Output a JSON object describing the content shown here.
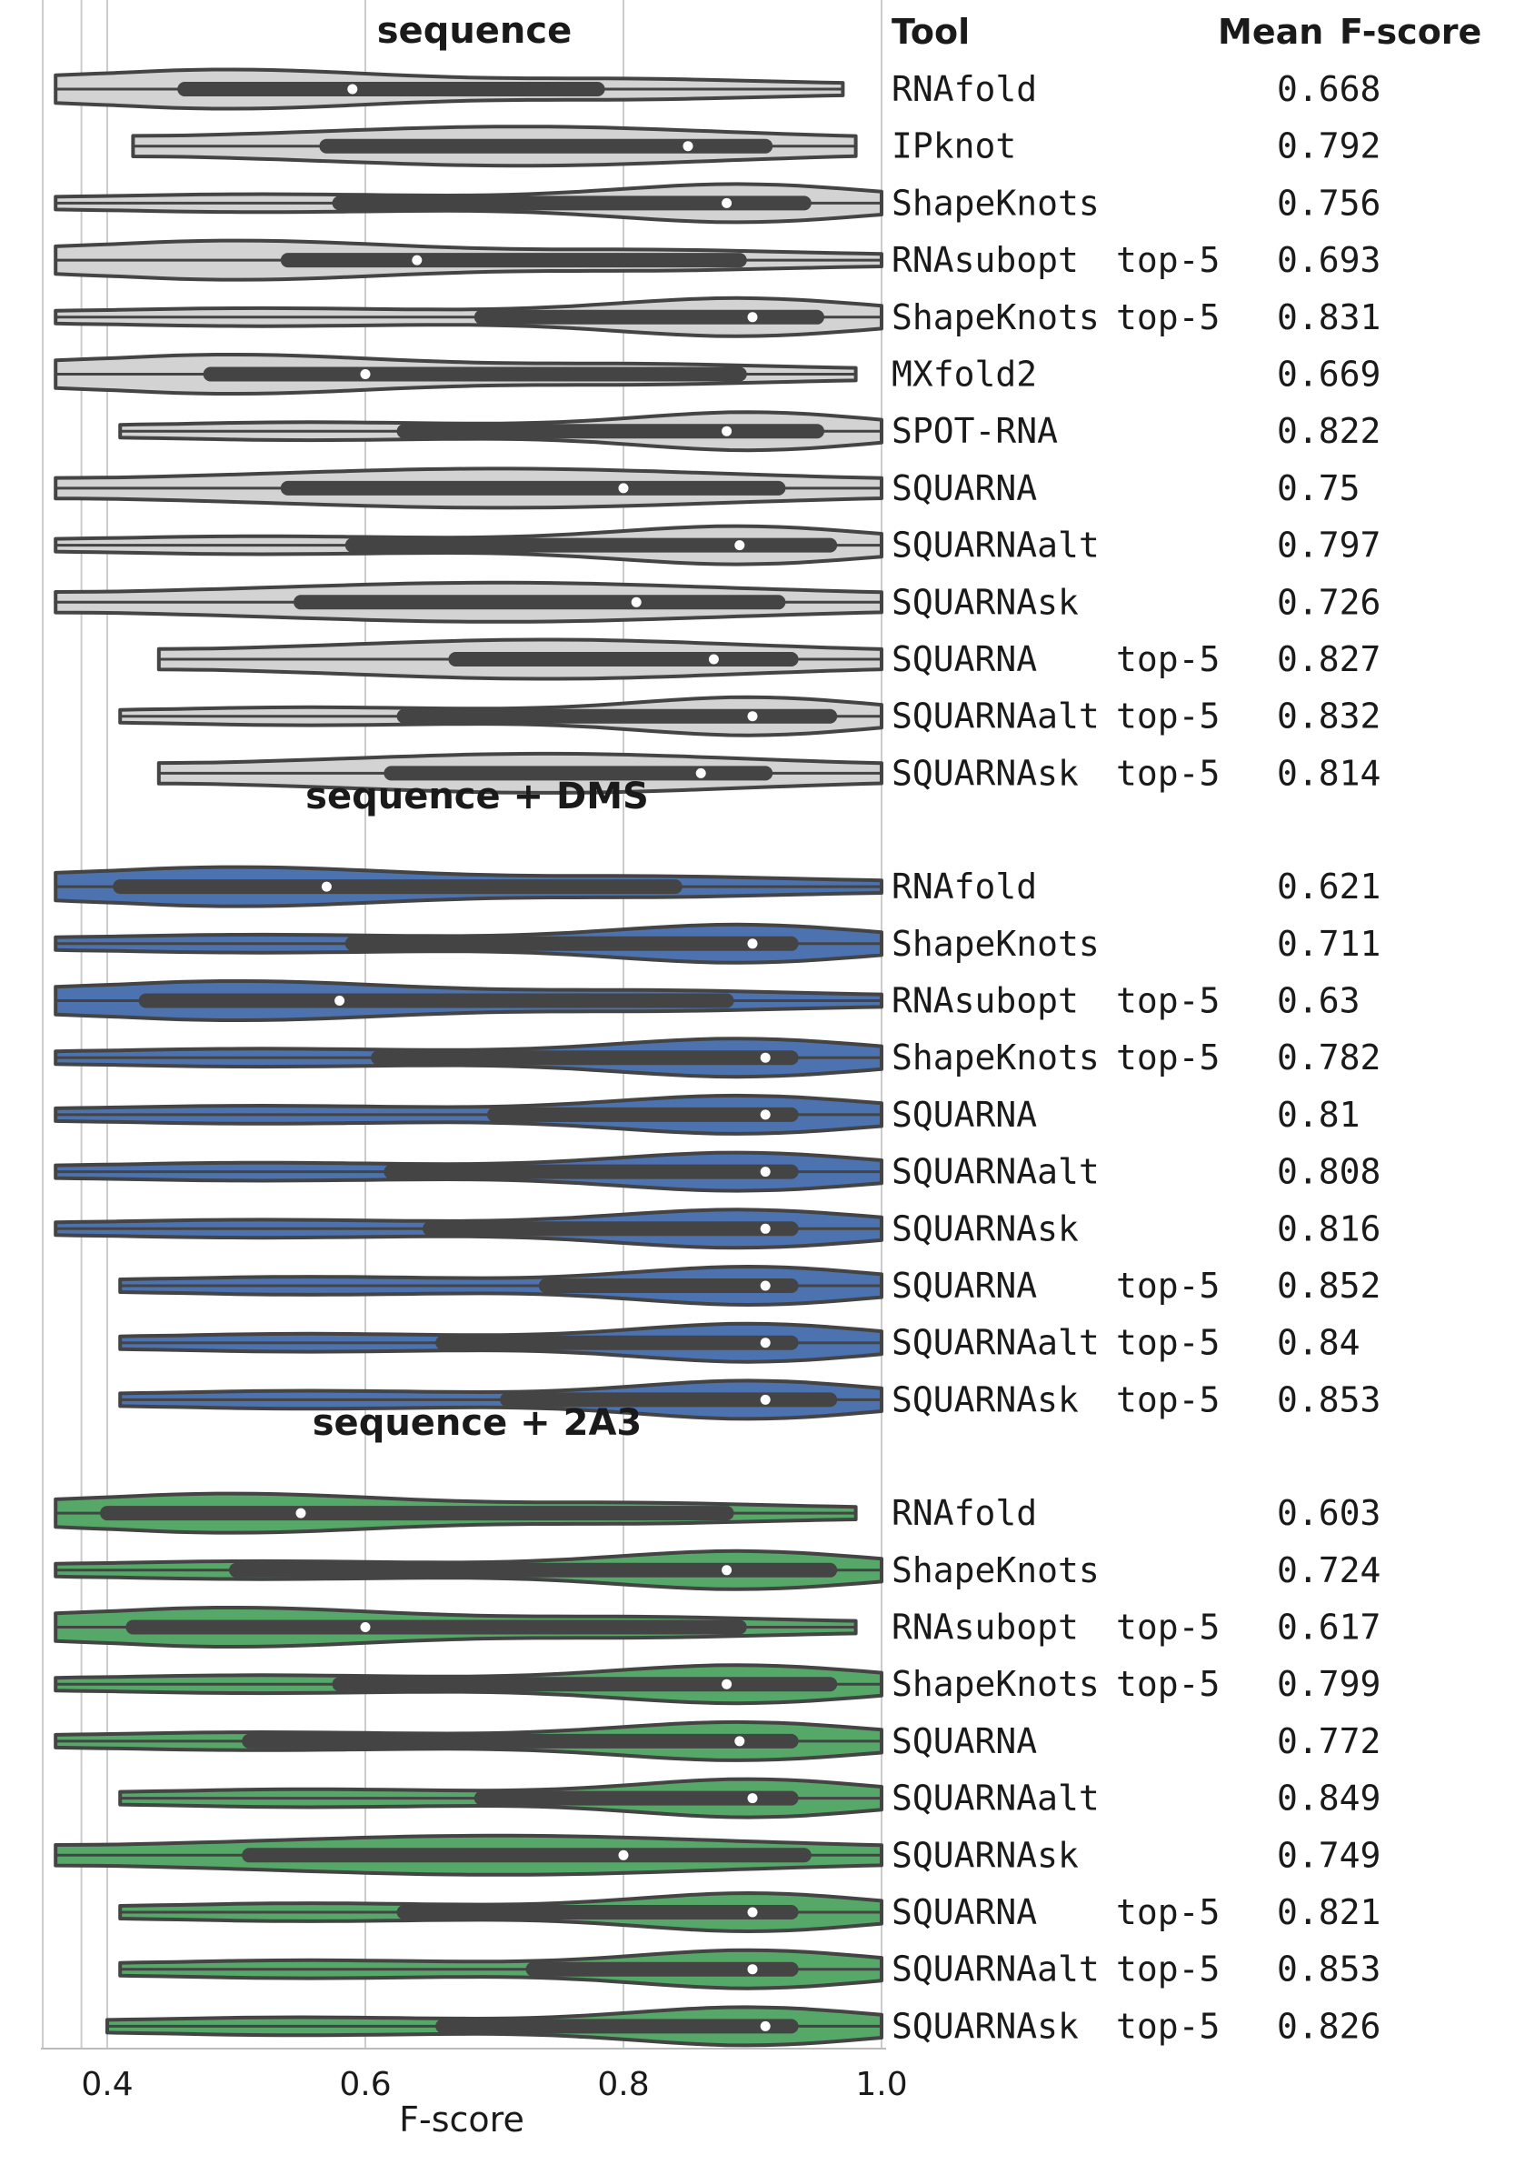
{
  "header": {
    "tool": "Tool",
    "mean": "Mean",
    "fscore": "F-score"
  },
  "colors": {
    "sequence": "#d3d3d3",
    "dms": "#4c72b0",
    "a3": "#55a868",
    "outline": "#444444"
  },
  "chart_data": {
    "type": "violin",
    "xlabel": "F-score",
    "xlim": [
      0.35,
      1.0
    ],
    "xticks": [
      {
        "value": 0.4,
        "label": "0.4"
      },
      {
        "value": 0.6,
        "label": "0.6"
      },
      {
        "value": 0.8,
        "label": "0.8"
      },
      {
        "value": 1.0,
        "label": "1.0"
      }
    ],
    "groups": [
      {
        "title": "sequence",
        "color": "#d3d3d3",
        "tools": [
          {
            "tool": "RNAfold",
            "variant": "",
            "mean": "0.668",
            "min": 0.36,
            "max": 0.97,
            "q1": 0.46,
            "q3": 0.78,
            "median": 0.59,
            "shape": "left"
          },
          {
            "tool": "IPknot",
            "variant": "",
            "mean": "0.792",
            "min": 0.42,
            "max": 0.98,
            "q1": 0.57,
            "q3": 0.91,
            "median": 0.85,
            "shape": "even"
          },
          {
            "tool": "ShapeKnots",
            "variant": "",
            "mean": "0.756",
            "min": 0.36,
            "max": 1.0,
            "q1": 0.58,
            "q3": 0.94,
            "median": 0.88,
            "shape": "right"
          },
          {
            "tool": "RNAsubopt",
            "variant": "top-5",
            "mean": "0.693",
            "min": 0.36,
            "max": 1.0,
            "q1": 0.54,
            "q3": 0.89,
            "median": 0.64,
            "shape": "left"
          },
          {
            "tool": "ShapeKnots",
            "variant": "top-5",
            "mean": "0.831",
            "min": 0.36,
            "max": 1.0,
            "q1": 0.69,
            "q3": 0.95,
            "median": 0.9,
            "shape": "right"
          },
          {
            "tool": "MXfold2",
            "variant": "",
            "mean": "0.669",
            "min": 0.36,
            "max": 0.98,
            "q1": 0.48,
            "q3": 0.89,
            "median": 0.6,
            "shape": "left"
          },
          {
            "tool": "SPOT-RNA",
            "variant": "",
            "mean": "0.822",
            "min": 0.41,
            "max": 1.0,
            "q1": 0.63,
            "q3": 0.95,
            "median": 0.88,
            "shape": "right"
          },
          {
            "tool": "SQUARNA",
            "variant": "",
            "mean": "0.75",
            "min": 0.36,
            "max": 1.0,
            "q1": 0.54,
            "q3": 0.92,
            "median": 0.8,
            "shape": "even"
          },
          {
            "tool": "SQUARNAalt",
            "variant": "",
            "mean": "0.797",
            "min": 0.36,
            "max": 1.0,
            "q1": 0.59,
            "q3": 0.96,
            "median": 0.89,
            "shape": "right"
          },
          {
            "tool": "SQUARNAsk",
            "variant": "",
            "mean": "0.726",
            "min": 0.36,
            "max": 1.0,
            "q1": 0.55,
            "q3": 0.92,
            "median": 0.81,
            "shape": "even"
          },
          {
            "tool": "SQUARNA",
            "variant": "top-5",
            "mean": "0.827",
            "min": 0.44,
            "max": 1.0,
            "q1": 0.67,
            "q3": 0.93,
            "median": 0.87,
            "shape": "even"
          },
          {
            "tool": "SQUARNAalt",
            "variant": "top-5",
            "mean": "0.832",
            "min": 0.41,
            "max": 1.0,
            "q1": 0.63,
            "q3": 0.96,
            "median": 0.9,
            "shape": "right"
          },
          {
            "tool": "SQUARNAsk",
            "variant": "top-5",
            "mean": "0.814",
            "min": 0.44,
            "max": 1.0,
            "q1": 0.62,
            "q3": 0.91,
            "median": 0.86,
            "shape": "even"
          }
        ]
      },
      {
        "title": "sequence + DMS",
        "color": "#4c72b0",
        "tools": [
          {
            "tool": "RNAfold",
            "variant": "",
            "mean": "0.621",
            "min": 0.36,
            "max": 1.0,
            "q1": 0.41,
            "q3": 0.84,
            "median": 0.57,
            "shape": "left"
          },
          {
            "tool": "ShapeKnots",
            "variant": "",
            "mean": "0.711",
            "min": 0.36,
            "max": 1.0,
            "q1": 0.59,
            "q3": 0.93,
            "median": 0.9,
            "shape": "right"
          },
          {
            "tool": "RNAsubopt",
            "variant": "top-5",
            "mean": "0.63",
            "min": 0.36,
            "max": 1.0,
            "q1": 0.43,
            "q3": 0.88,
            "median": 0.58,
            "shape": "left"
          },
          {
            "tool": "ShapeKnots",
            "variant": "top-5",
            "mean": "0.782",
            "min": 0.36,
            "max": 1.0,
            "q1": 0.61,
            "q3": 0.93,
            "median": 0.91,
            "shape": "right"
          },
          {
            "tool": "SQUARNA",
            "variant": "",
            "mean": "0.81",
            "min": 0.36,
            "max": 1.0,
            "q1": 0.7,
            "q3": 0.93,
            "median": 0.91,
            "shape": "right"
          },
          {
            "tool": "SQUARNAalt",
            "variant": "",
            "mean": "0.808",
            "min": 0.36,
            "max": 1.0,
            "q1": 0.62,
            "q3": 0.93,
            "median": 0.91,
            "shape": "right"
          },
          {
            "tool": "SQUARNAsk",
            "variant": "",
            "mean": "0.816",
            "min": 0.36,
            "max": 1.0,
            "q1": 0.65,
            "q3": 0.93,
            "median": 0.91,
            "shape": "right"
          },
          {
            "tool": "SQUARNA",
            "variant": "top-5",
            "mean": "0.852",
            "min": 0.41,
            "max": 1.0,
            "q1": 0.74,
            "q3": 0.93,
            "median": 0.91,
            "shape": "right"
          },
          {
            "tool": "SQUARNAalt",
            "variant": "top-5",
            "mean": "0.84",
            "min": 0.41,
            "max": 1.0,
            "q1": 0.66,
            "q3": 0.93,
            "median": 0.91,
            "shape": "right"
          },
          {
            "tool": "SQUARNAsk",
            "variant": "top-5",
            "mean": "0.853",
            "min": 0.41,
            "max": 1.0,
            "q1": 0.71,
            "q3": 0.96,
            "median": 0.91,
            "shape": "right"
          }
        ]
      },
      {
        "title": "sequence + 2A3",
        "color": "#55a868",
        "tools": [
          {
            "tool": "RNAfold",
            "variant": "",
            "mean": "0.603",
            "min": 0.36,
            "max": 0.98,
            "q1": 0.4,
            "q3": 0.88,
            "median": 0.55,
            "shape": "left"
          },
          {
            "tool": "ShapeKnots",
            "variant": "",
            "mean": "0.724",
            "min": 0.36,
            "max": 1.0,
            "q1": 0.5,
            "q3": 0.96,
            "median": 0.88,
            "shape": "right"
          },
          {
            "tool": "RNAsubopt",
            "variant": "top-5",
            "mean": "0.617",
            "min": 0.36,
            "max": 0.98,
            "q1": 0.42,
            "q3": 0.89,
            "median": 0.6,
            "shape": "left"
          },
          {
            "tool": "ShapeKnots",
            "variant": "top-5",
            "mean": "0.799",
            "min": 0.36,
            "max": 1.0,
            "q1": 0.58,
            "q3": 0.96,
            "median": 0.88,
            "shape": "right"
          },
          {
            "tool": "SQUARNA",
            "variant": "",
            "mean": "0.772",
            "min": 0.36,
            "max": 1.0,
            "q1": 0.51,
            "q3": 0.93,
            "median": 0.89,
            "shape": "right"
          },
          {
            "tool": "SQUARNAalt",
            "variant": "",
            "mean": "0.849",
            "min": 0.41,
            "max": 1.0,
            "q1": 0.69,
            "q3": 0.93,
            "median": 0.9,
            "shape": "right"
          },
          {
            "tool": "SQUARNAsk",
            "variant": "",
            "mean": "0.749",
            "min": 0.36,
            "max": 1.0,
            "q1": 0.51,
            "q3": 0.94,
            "median": 0.8,
            "shape": "even"
          },
          {
            "tool": "SQUARNA",
            "variant": "top-5",
            "mean": "0.821",
            "min": 0.41,
            "max": 1.0,
            "q1": 0.63,
            "q3": 0.93,
            "median": 0.9,
            "shape": "right"
          },
          {
            "tool": "SQUARNAalt",
            "variant": "top-5",
            "mean": "0.853",
            "min": 0.41,
            "max": 1.0,
            "q1": 0.73,
            "q3": 0.93,
            "median": 0.9,
            "shape": "right"
          },
          {
            "tool": "SQUARNAsk",
            "variant": "top-5",
            "mean": "0.826",
            "min": 0.4,
            "max": 1.0,
            "q1": 0.66,
            "q3": 0.93,
            "median": 0.91,
            "shape": "right"
          }
        ]
      }
    ]
  }
}
